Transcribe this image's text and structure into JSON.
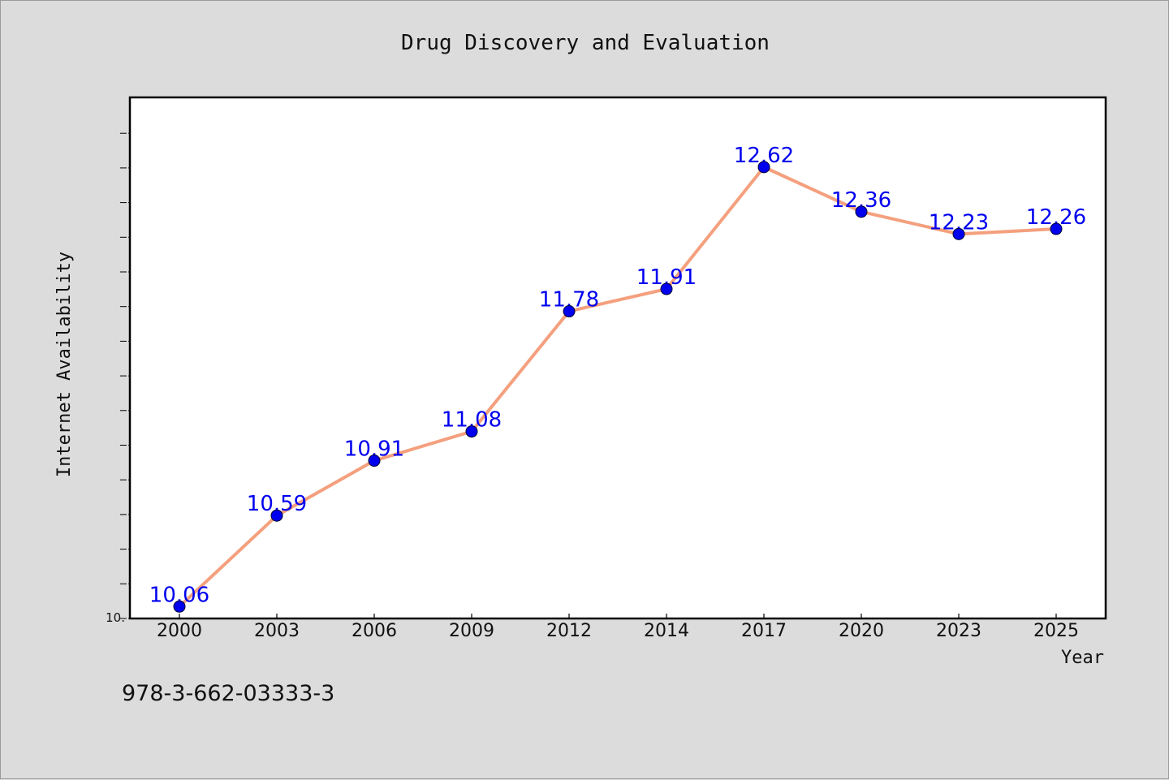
{
  "chart_data": {
    "type": "line",
    "title": "Drug Discovery and Evaluation",
    "xlabel": "Year",
    "ylabel": "Internet Availability",
    "categories": [
      "2000",
      "2003",
      "2006",
      "2009",
      "2012",
      "2014",
      "2017",
      "2020",
      "2023",
      "2025"
    ],
    "series": [
      {
        "values": [
          10.06,
          10.59,
          10.91,
          11.08,
          11.78,
          11.91,
          12.62,
          12.36,
          12.23,
          12.26
        ],
        "data_labels": [
          "10.06",
          "10.59",
          "10.91",
          "11.08",
          "11.78",
          "11.91",
          "12.62",
          "12.36",
          "12.23",
          "12.26"
        ],
        "line_color": "#f4a07e",
        "marker_color": "#0000ee"
      }
    ],
    "ylim": [
      10.0,
      13.0
    ],
    "ytick_label": "10.",
    "grid": false,
    "legend": "none"
  },
  "footer": {
    "text": "978-3-662-03333-3"
  }
}
